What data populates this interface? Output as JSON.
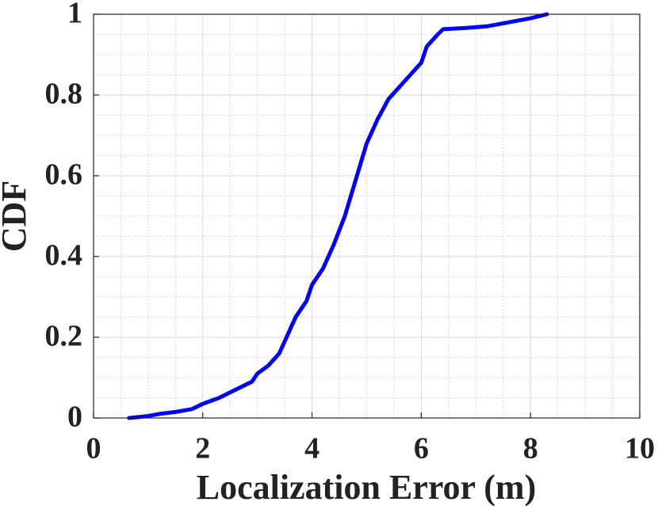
{
  "chart_data": {
    "type": "line",
    "x_label": "Localization Error (m)",
    "y_label": "CDF",
    "xlim": [
      0,
      10
    ],
    "ylim": [
      0,
      1
    ],
    "xticks": [
      0,
      2,
      4,
      6,
      8,
      10
    ],
    "yticks": [
      0,
      0.2,
      0.4,
      0.6,
      0.8,
      1
    ],
    "grid": true,
    "minor_grid": true,
    "series": [
      {
        "color": "#0000ff",
        "x": [
          0.65,
          0.8,
          1.0,
          1.2,
          1.5,
          1.8,
          2.0,
          2.3,
          2.6,
          2.9,
          3.0,
          3.2,
          3.4,
          3.5,
          3.6,
          3.7,
          3.8,
          3.9,
          4.0,
          4.2,
          4.4,
          4.6,
          4.8,
          5.0,
          5.2,
          5.4,
          5.6,
          5.8,
          6.0,
          6.1,
          6.3,
          6.4,
          6.8,
          7.2,
          7.6,
          8.0,
          8.3
        ],
        "values": [
          0,
          0.002,
          0.005,
          0.01,
          0.015,
          0.022,
          0.035,
          0.05,
          0.07,
          0.09,
          0.11,
          0.13,
          0.16,
          0.19,
          0.22,
          0.25,
          0.27,
          0.29,
          0.33,
          0.37,
          0.43,
          0.5,
          0.59,
          0.68,
          0.74,
          0.79,
          0.82,
          0.85,
          0.88,
          0.92,
          0.95,
          0.963,
          0.966,
          0.97,
          0.98,
          0.99,
          1.0
        ]
      }
    ]
  }
}
